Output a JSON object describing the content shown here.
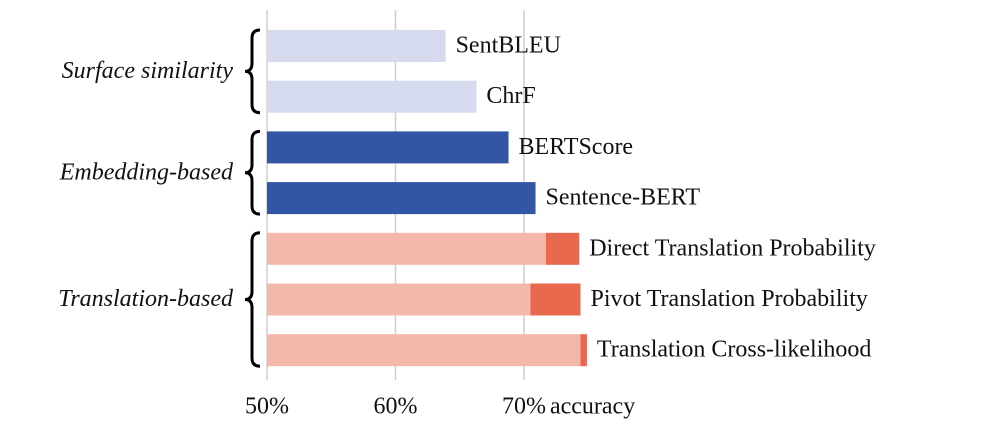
{
  "chart_data": {
    "type": "grouped-hbar",
    "xlabel": "accuracy",
    "groups": [
      {
        "label": "Surface similarity",
        "categories": [
          "SentBLEU",
          "ChrF"
        ]
      },
      {
        "label": "Embedding-based",
        "categories": [
          "BERTScore",
          "Sentence-BERT"
        ]
      },
      {
        "label": "Translation-based",
        "categories": [
          "Direct Translation Probability",
          "Pivot Translation Probability",
          "Translation Cross-likelihood"
        ]
      }
    ],
    "series": [
      {
        "colors": [
          "#d5daee",
          "#d5daee",
          "#3355a5",
          "#3355a5",
          "#f4b8aa",
          "#f4b8aa",
          "#f4b8aa"
        ],
        "values": [
          63.9,
          66.3,
          68.8,
          70.9,
          71.7,
          70.5,
          74.4
        ]
      },
      {
        "color": "#e8694e",
        "values": [
          null,
          null,
          null,
          null,
          2.6,
          3.9,
          0.5
        ]
      }
    ],
    "xlim": [
      50,
      79
    ],
    "xticks": [
      {
        "value": 50,
        "label": "50%"
      },
      {
        "value": 60,
        "label": "60%"
      },
      {
        "value": 70,
        "label": "70%"
      }
    ],
    "grid": true
  }
}
